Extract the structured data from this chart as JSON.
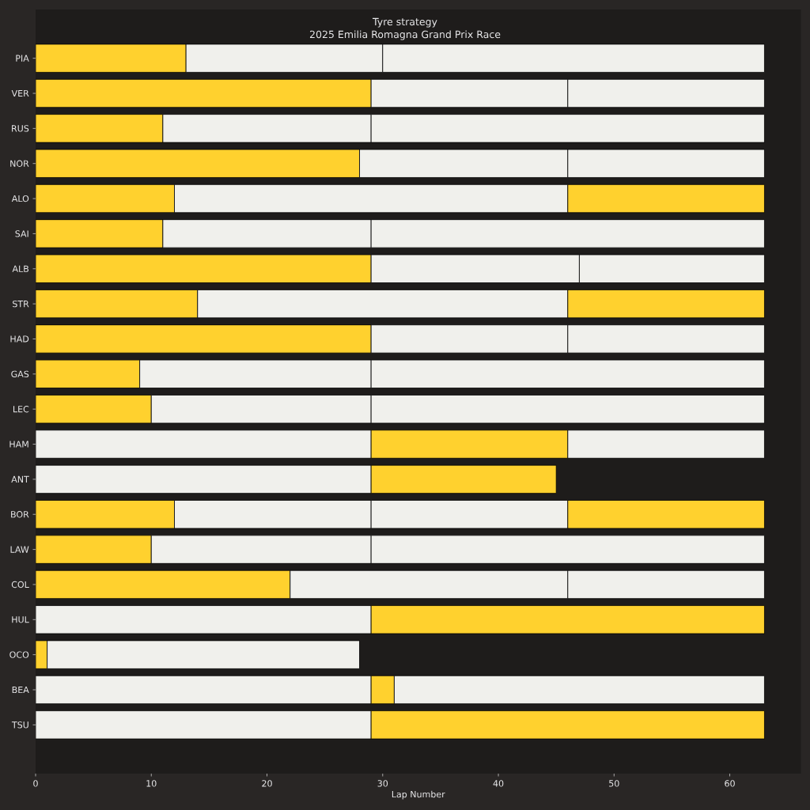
{
  "chart_data": {
    "type": "bar",
    "orientation": "horizontal",
    "stacked": true,
    "title": "Tyre strategy",
    "subtitle": "2025 Emilia Romagna Grand Prix Race",
    "xlabel": "Lap Number",
    "categories": [
      "PIA",
      "VER",
      "RUS",
      "NOR",
      "ALO",
      "SAI",
      "ALB",
      "STR",
      "HAD",
      "GAS",
      "LEC",
      "HAM",
      "ANT",
      "BOR",
      "LAW",
      "COL",
      "HUL",
      "OCO",
      "BEA",
      "TSU"
    ],
    "series": [
      {
        "values": [
          13,
          29,
          11,
          28,
          12,
          11,
          29,
          14,
          29,
          9,
          10,
          29,
          29,
          12,
          10,
          22,
          29,
          1,
          29,
          29
        ],
        "colors": [
          "#ffd12e",
          "#ffd12e",
          "#ffd12e",
          "#ffd12e",
          "#ffd12e",
          "#ffd12e",
          "#ffd12e",
          "#ffd12e",
          "#ffd12e",
          "#ffd12e",
          "#ffd12e",
          "#f0f0ec",
          "#f0f0ec",
          "#ffd12e",
          "#ffd12e",
          "#ffd12e",
          "#f0f0ec",
          "#ffd12e",
          "#f0f0ec",
          "#f0f0ec"
        ]
      },
      {
        "values": [
          17,
          17,
          18,
          18,
          34,
          18,
          18,
          32,
          17,
          20,
          19,
          17,
          16,
          17,
          19,
          24,
          34,
          27,
          2,
          34
        ],
        "colors": [
          "#f0f0ec",
          "#f0f0ec",
          "#f0f0ec",
          "#f0f0ec",
          "#f0f0ec",
          "#f0f0ec",
          "#f0f0ec",
          "#f0f0ec",
          "#f0f0ec",
          "#f0f0ec",
          "#f0f0ec",
          "#ffd12e",
          "#ffd12e",
          "#f0f0ec",
          "#f0f0ec",
          "#f0f0ec",
          "#ffd12e",
          "#f0f0ec",
          "#ffd12e",
          "#ffd12e"
        ]
      },
      {
        "values": [
          33,
          17,
          34,
          17,
          17,
          34,
          16,
          17,
          17,
          34,
          34,
          17,
          null,
          17,
          34,
          17,
          null,
          null,
          32,
          null
        ],
        "colors": [
          "#f0f0ec",
          "#f0f0ec",
          "#f0f0ec",
          "#f0f0ec",
          "#ffd12e",
          "#f0f0ec",
          "#f0f0ec",
          "#ffd12e",
          "#f0f0ec",
          "#f0f0ec",
          "#f0f0ec",
          "#f0f0ec",
          null,
          "#f0f0ec",
          "#f0f0ec",
          "#f0f0ec",
          null,
          null,
          "#f0f0ec",
          null
        ]
      },
      {
        "values": [
          null,
          null,
          null,
          null,
          null,
          null,
          null,
          null,
          null,
          null,
          null,
          null,
          null,
          17,
          null,
          null,
          null,
          null,
          null,
          null
        ],
        "colors": [
          null,
          null,
          null,
          null,
          null,
          null,
          null,
          null,
          null,
          null,
          null,
          null,
          null,
          "#ffd12e",
          null,
          null,
          null,
          null,
          null,
          null
        ]
      }
    ],
    "xlim": [
      0,
      66.15
    ],
    "xticks": [
      0,
      10,
      20,
      30,
      40,
      50,
      60
    ]
  }
}
